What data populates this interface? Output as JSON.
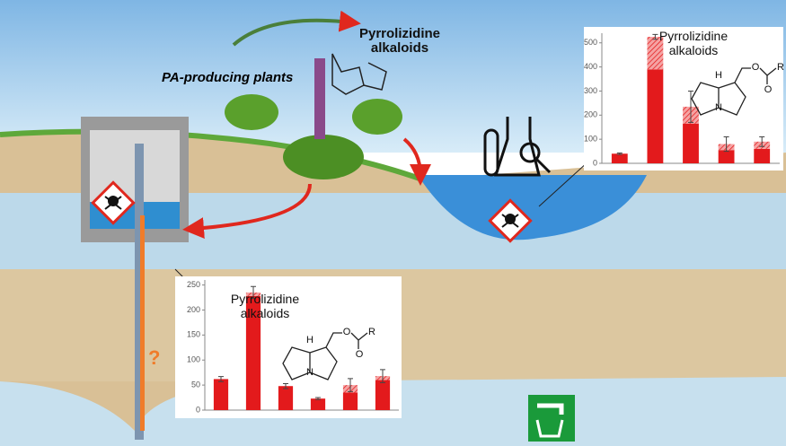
{
  "labels": {
    "plants": "PA-producing plants",
    "top_title": "Pyrrolizidine alkaloids",
    "question": "?"
  },
  "chart_data": [
    {
      "type": "bar",
      "stacked": true,
      "title": "Pyrrolizidine alkaloids",
      "categories": [
        null,
        null,
        null,
        null,
        null
      ],
      "series": [
        {
          "color": "#e31a1c",
          "values": [
            40,
            390,
            165,
            55,
            60
          ]
        },
        {
          "color": "#f08080",
          "pattern": "hatched",
          "values": [
            0,
            135,
            70,
            25,
            30
          ],
          "errors": [
            3,
            10,
            65,
            30,
            20
          ]
        }
      ],
      "ylim": [
        0,
        540
      ],
      "yticks": [
        0,
        100,
        200,
        300,
        400,
        500
      ],
      "annotations": [
        "H",
        "N",
        "O",
        "O",
        "R"
      ]
    },
    {
      "type": "bar",
      "stacked": true,
      "title": "Pyrrolizidine alkaloids",
      "categories": [
        null,
        null,
        null,
        null,
        null,
        null
      ],
      "series": [
        {
          "color": "#e31a1c",
          "values": [
            62,
            228,
            48,
            23,
            35,
            60
          ]
        },
        {
          "color": "#f08080",
          "pattern": "hatched",
          "values": [
            0,
            7,
            0,
            0,
            15,
            8
          ],
          "errors": [
            5,
            12,
            5,
            2,
            13,
            13
          ]
        }
      ],
      "ylim": [
        0,
        260
      ],
      "yticks": [
        0,
        50,
        100,
        150,
        200,
        250
      ],
      "annotations": [
        "H",
        "N",
        "O",
        "O",
        "R"
      ]
    }
  ]
}
